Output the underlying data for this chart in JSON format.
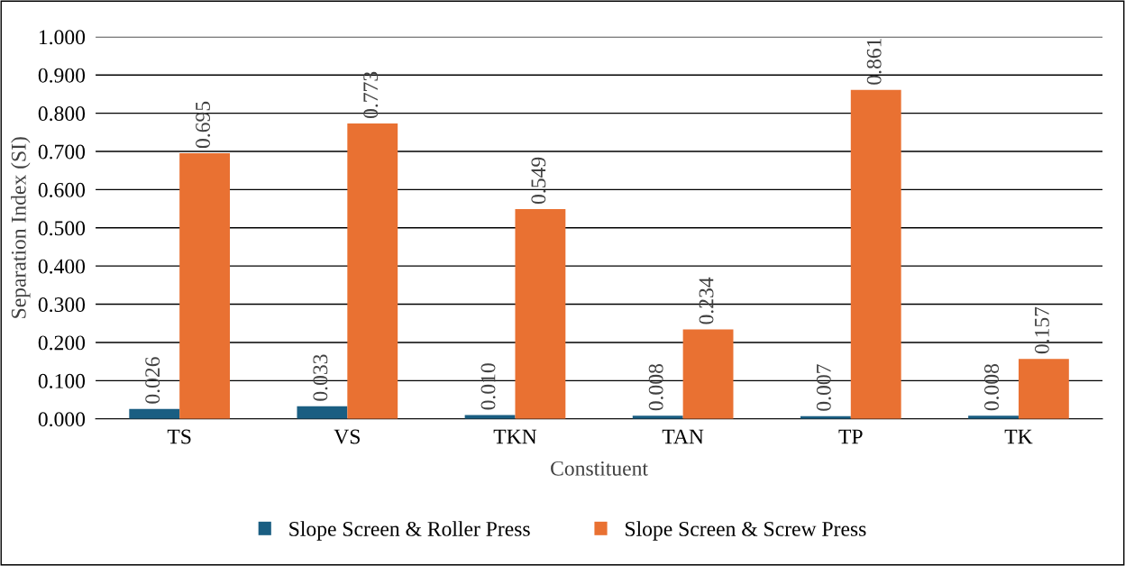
{
  "chart_data": {
    "type": "bar",
    "xlabel": "Constituent",
    "ylabel": "Separation Index (SI)",
    "categories": [
      "TS",
      "VS",
      "TKN",
      "TAN",
      "TP",
      "TK"
    ],
    "series": [
      {
        "name": "Slope Screen & Roller Press",
        "color": "#1a5e82",
        "values": [
          0.026,
          0.033,
          0.01,
          0.008,
          0.007,
          0.008
        ],
        "value_labels": [
          "0.026",
          "0.033",
          "0.010",
          "0.008",
          "0.007",
          "0.008"
        ]
      },
      {
        "name": "Slope Screen & Screw Press",
        "color": "#e97132",
        "values": [
          0.695,
          0.773,
          0.549,
          0.234,
          0.861,
          0.157
        ],
        "value_labels": [
          "0.695",
          "0.773",
          "0.549",
          "0.234",
          "0.861",
          "0.157"
        ]
      }
    ],
    "ylim": [
      0,
      1.0
    ],
    "yticks": [
      {
        "value": 0,
        "label": "0.000"
      },
      {
        "value": 0.1,
        "label": "0.100"
      },
      {
        "value": 0.2,
        "label": "0.200"
      },
      {
        "value": 0.3,
        "label": "0.300"
      },
      {
        "value": 0.4,
        "label": "0.400"
      },
      {
        "value": 0.5,
        "label": "0.500"
      },
      {
        "value": 0.6,
        "label": "0.600"
      },
      {
        "value": 0.7,
        "label": "0.700"
      },
      {
        "value": 0.8,
        "label": "0.800"
      },
      {
        "value": 0.9,
        "label": "0.900"
      },
      {
        "value": 1.0,
        "label": "1.000"
      }
    ],
    "grid": "y",
    "legend": "bottom"
  }
}
